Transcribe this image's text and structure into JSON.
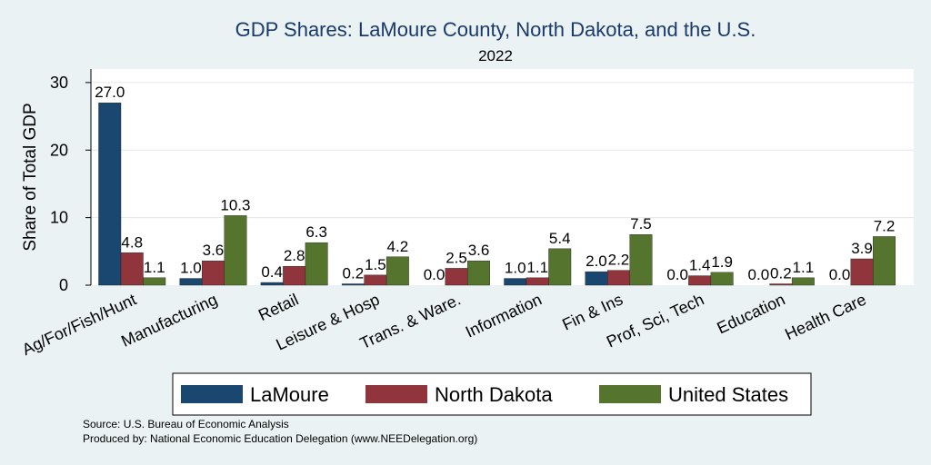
{
  "chart_data": {
    "type": "bar",
    "title": "GDP Shares: LaMoure County, North Dakota, and the U.S.",
    "subtitle": "2022",
    "ylabel": "Share of Total GDP",
    "xlabel": "",
    "ylim": [
      0,
      32
    ],
    "yticks": [
      0,
      10,
      20,
      30
    ],
    "grid": true,
    "legend_position": "bottom",
    "categories": [
      "Ag/For/Fish/Hunt",
      "Manufacturing",
      "Retail",
      "Leisure & Hosp",
      "Trans. & Ware.",
      "Information",
      "Fin & Ins",
      "Prof, Sci, Tech",
      "Education",
      "Health Care"
    ],
    "series": [
      {
        "name": "LaMoure",
        "color": "#1a476f",
        "values": [
          27.0,
          1.0,
          0.4,
          0.2,
          0.0,
          1.0,
          2.0,
          0.0,
          0.0,
          0.0
        ]
      },
      {
        "name": "North Dakota",
        "color": "#90353b",
        "values": [
          4.8,
          3.6,
          2.8,
          1.5,
          2.5,
          1.1,
          2.2,
          1.4,
          0.2,
          3.9
        ]
      },
      {
        "name": "United States",
        "color": "#55752f",
        "values": [
          1.1,
          10.3,
          6.3,
          4.2,
          3.6,
          5.4,
          7.5,
          1.9,
          1.1,
          7.2
        ]
      }
    ]
  },
  "notes": {
    "source": "Source: U.S. Bureau of Economic Analysis",
    "produced_by": "Produced by: National Economic Education Delegation (www.NEEDelegation.org)"
  }
}
